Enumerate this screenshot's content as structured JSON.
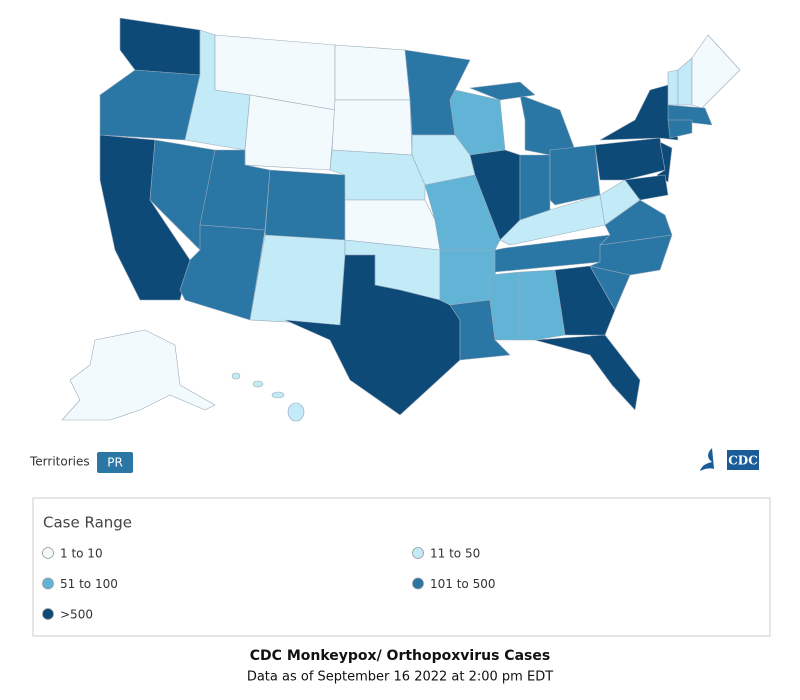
{
  "territories": {
    "label": "Territories",
    "buttons": [
      "PR"
    ]
  },
  "logo": "CDC",
  "legend": {
    "title": "Case Range",
    "items": [
      {
        "label": "1 to 10",
        "color": "#f3fafd"
      },
      {
        "label": "11 to 50",
        "color": "#c3eaf7"
      },
      {
        "label": "51 to 100",
        "color": "#62b4d6"
      },
      {
        "label": "101 to 500",
        "color": "#2a77a6"
      },
      {
        "label": ">500",
        "color": "#0e4a78"
      }
    ]
  },
  "caption": {
    "title": "CDC Monkeypox/ Orthopoxvirus Cases",
    "subtitle": "Data as of September 16 2022 at 2:00 pm EDT"
  }
}
